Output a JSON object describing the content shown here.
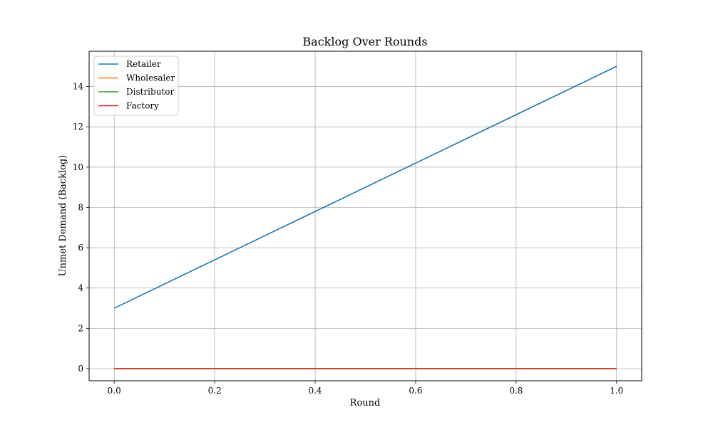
{
  "chart_data": {
    "type": "line",
    "title": "Backlog Over Rounds",
    "xlabel": "Round",
    "ylabel": "Unmet Demand (Backlog)",
    "xlim": [
      -0.05,
      1.05
    ],
    "ylim": [
      -0.6,
      15.75
    ],
    "xticks": [
      0.0,
      0.2,
      0.4,
      0.6,
      0.8,
      1.0
    ],
    "xtick_labels": [
      "0.0",
      "0.2",
      "0.4",
      "0.6",
      "0.8",
      "1.0"
    ],
    "yticks": [
      0,
      2,
      4,
      6,
      8,
      10,
      12,
      14
    ],
    "ytick_labels": [
      "0",
      "2",
      "4",
      "6",
      "8",
      "10",
      "12",
      "14"
    ],
    "grid": true,
    "legend_position": "top-left",
    "x": [
      0,
      1
    ],
    "series": [
      {
        "name": "Retailer",
        "values": [
          3,
          15
        ],
        "color": "#1f77b4"
      },
      {
        "name": "Wholesaler",
        "values": [
          0,
          0
        ],
        "color": "#ff7f0e"
      },
      {
        "name": "Distributor",
        "values": [
          0,
          0
        ],
        "color": "#2ca02c"
      },
      {
        "name": "Factory",
        "values": [
          0,
          0
        ],
        "color": "#d62728"
      }
    ]
  }
}
